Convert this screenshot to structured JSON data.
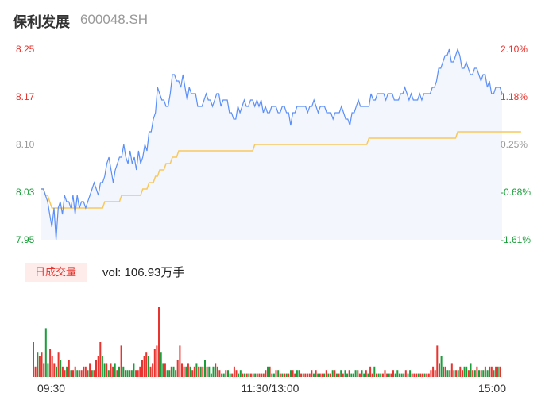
{
  "header": {
    "name": "保利发展",
    "code": "600048.SH"
  },
  "volume_panel": {
    "tag_label": "日成交量",
    "vol_prefix": "vol: ",
    "vol_value": "106.93",
    "vol_unit": "万手",
    "vol_text": "vol: 106.93万手"
  },
  "colors": {
    "price_line": "#5b8ff9",
    "avg_line": "#f7c95c",
    "up": "#e8332e",
    "down": "#1a9e3a",
    "neutral": "#999999",
    "area_fill": "#f3f6fd"
  },
  "chart_data": [
    {
      "type": "line",
      "title": "",
      "y_labels_left": [
        "8.25",
        "8.17",
        "8.10",
        "8.03",
        "7.95"
      ],
      "y_labels_right": [
        "2.10%",
        "1.18%",
        "0.25%",
        "-0.68%",
        "-1.61%"
      ],
      "y_label_colors": [
        "up",
        "up",
        "neutral",
        "down",
        "down"
      ],
      "ylim": [
        7.95,
        8.25
      ],
      "prev_close": 8.08,
      "x_labels": [
        "09:30",
        "11:30/13:00",
        "15:00"
      ],
      "series": [
        {
          "role": "price",
          "values": [
            8.03,
            8.03,
            8.02,
            8.01,
            7.99,
            7.97,
            8.0,
            7.95,
            8.0,
            8.01,
            7.99,
            8.02,
            8.01,
            8.01,
            8.0,
            8.02,
            7.99,
            8.02,
            8.0,
            8.01,
            8.01,
            8.0,
            8.01,
            8.02,
            8.03,
            8.04,
            8.03,
            8.02,
            8.04,
            8.04,
            8.05,
            8.07,
            8.08,
            8.06,
            8.04,
            8.06,
            8.07,
            8.08,
            8.08,
            8.1,
            8.08,
            8.07,
            8.09,
            8.07,
            8.08,
            8.06,
            8.09,
            8.07,
            8.08,
            8.1,
            8.09,
            8.12,
            8.12,
            8.14,
            8.15,
            8.19,
            8.18,
            8.17,
            8.17,
            8.16,
            8.16,
            8.18,
            8.21,
            8.21,
            8.2,
            8.2,
            8.19,
            8.21,
            8.19,
            8.17,
            8.19,
            8.18,
            8.18,
            8.18,
            8.16,
            8.16,
            8.16,
            8.17,
            8.18,
            8.17,
            8.17,
            8.16,
            8.17,
            8.18,
            8.18,
            8.16,
            8.17,
            8.17,
            8.17,
            8.15,
            8.15,
            8.14,
            8.14,
            8.16,
            8.15,
            8.16,
            8.17,
            8.16,
            8.16,
            8.17,
            8.17,
            8.16,
            8.17,
            8.16,
            8.17,
            8.15,
            8.16,
            8.15,
            8.15,
            8.16,
            8.16,
            8.16,
            8.15,
            8.15,
            8.16,
            8.16,
            8.15,
            8.15,
            8.13,
            8.15,
            8.15,
            8.16,
            8.16,
            8.16,
            8.16,
            8.16,
            8.15,
            8.16,
            8.16,
            8.17,
            8.16,
            8.15,
            8.16,
            8.16,
            8.16,
            8.15,
            8.15,
            8.15,
            8.14,
            8.15,
            8.15,
            8.15,
            8.16,
            8.15,
            8.14,
            8.14,
            8.13,
            8.15,
            8.15,
            8.16,
            8.17,
            8.16,
            8.16,
            8.16,
            8.16,
            8.16,
            8.18,
            8.17,
            8.17,
            8.18,
            8.18,
            8.18,
            8.18,
            8.17,
            8.18,
            8.18,
            8.18,
            8.17,
            8.17,
            8.17,
            8.18,
            8.18,
            8.19,
            8.18,
            8.17,
            8.18,
            8.17,
            8.17,
            8.17,
            8.18,
            8.17,
            8.18,
            8.18,
            8.18,
            8.18,
            8.19,
            8.19,
            8.2,
            8.22,
            8.22,
            8.23,
            8.24,
            8.24,
            8.25,
            8.23,
            8.23,
            8.24,
            8.25,
            8.24,
            8.22,
            8.22,
            8.23,
            8.22,
            8.21,
            8.21,
            8.22,
            8.22,
            8.21,
            8.2,
            8.21,
            8.21,
            8.19,
            8.2,
            8.18,
            8.18,
            8.19,
            8.19,
            8.19,
            8.18
          ]
        },
        {
          "role": "average",
          "values": [
            8.03,
            8.03,
            8.02,
            8.02,
            8.01,
            8.0,
            8.0,
            8.0,
            8.0,
            8.0,
            8.0,
            8.0,
            8.0,
            8.0,
            8.0,
            8.0,
            8.0,
            8.0,
            8.0,
            8.0,
            8.0,
            8.0,
            8.0,
            8.0,
            8.0,
            8.0,
            8.0,
            8.0,
            8.0,
            8.0,
            8.01,
            8.01,
            8.01,
            8.01,
            8.01,
            8.01,
            8.01,
            8.01,
            8.02,
            8.02,
            8.02,
            8.02,
            8.02,
            8.02,
            8.02,
            8.02,
            8.02,
            8.02,
            8.03,
            8.03,
            8.03,
            8.04,
            8.04,
            8.04,
            8.05,
            8.05,
            8.06,
            8.06,
            8.06,
            8.07,
            8.07,
            8.07,
            8.08,
            8.08,
            8.08,
            8.09,
            8.09,
            8.09,
            8.09,
            8.09,
            8.09,
            8.09,
            8.09,
            8.09,
            8.09,
            8.09,
            8.09,
            8.09,
            8.09,
            8.09,
            8.09,
            8.09,
            8.09,
            8.09,
            8.09,
            8.09,
            8.09,
            8.09,
            8.09,
            8.09,
            8.09,
            8.09,
            8.09,
            8.09,
            8.09,
            8.09,
            8.09,
            8.09,
            8.09,
            8.09,
            8.09,
            8.1,
            8.1,
            8.1,
            8.1,
            8.1,
            8.1,
            8.1,
            8.1,
            8.1,
            8.1,
            8.1,
            8.1,
            8.1,
            8.1,
            8.1,
            8.1,
            8.1,
            8.1,
            8.1,
            8.1,
            8.1,
            8.1,
            8.1,
            8.1,
            8.1,
            8.1,
            8.1,
            8.1,
            8.1,
            8.1,
            8.1,
            8.1,
            8.1,
            8.1,
            8.1,
            8.1,
            8.1,
            8.1,
            8.1,
            8.1,
            8.1,
            8.1,
            8.1,
            8.1,
            8.1,
            8.1,
            8.1,
            8.1,
            8.1,
            8.1,
            8.1,
            8.1,
            8.1,
            8.1,
            8.11,
            8.11,
            8.11,
            8.11,
            8.11,
            8.11,
            8.11,
            8.11,
            8.11,
            8.11,
            8.11,
            8.11,
            8.11,
            8.11,
            8.11,
            8.11,
            8.11,
            8.11,
            8.11,
            8.11,
            8.11,
            8.11,
            8.11,
            8.11,
            8.11,
            8.11,
            8.11,
            8.11,
            8.11,
            8.11,
            8.11,
            8.11,
            8.11,
            8.11,
            8.11,
            8.11,
            8.11,
            8.11,
            8.11,
            8.11,
            8.11,
            8.11,
            8.12,
            8.12,
            8.12,
            8.12,
            8.12,
            8.12,
            8.12,
            8.12,
            8.12,
            8.12,
            8.12,
            8.12,
            8.12,
            8.12,
            8.12,
            8.12,
            8.12,
            8.12,
            8.12,
            8.12,
            8.12,
            8.12,
            8.12,
            8.12,
            8.12,
            8.12,
            8.12,
            8.12,
            8.12,
            8.12,
            8.12
          ]
        }
      ]
    },
    {
      "type": "bar",
      "title": "",
      "values": [
        10,
        3,
        7,
        6,
        7,
        4,
        14,
        4,
        8,
        6,
        4,
        3,
        7,
        5,
        3,
        2,
        3,
        5,
        2,
        2,
        3,
        2,
        2,
        2,
        3,
        3,
        2,
        4,
        2,
        2,
        5,
        6,
        10,
        6,
        4,
        4,
        2,
        4,
        3,
        4,
        2,
        3,
        9,
        3,
        2,
        2,
        2,
        2,
        4,
        2,
        2,
        3,
        5,
        6,
        7,
        6,
        3,
        4,
        8,
        9,
        20,
        7,
        4,
        4,
        2,
        2,
        3,
        3,
        2,
        5,
        9,
        4,
        3,
        3,
        4,
        3,
        2,
        3,
        4,
        3,
        3,
        3,
        5,
        3,
        3,
        1,
        3,
        4,
        3,
        2,
        1,
        1,
        2,
        2,
        1,
        1,
        3,
        2,
        1,
        2,
        1,
        1,
        1,
        1,
        1,
        1,
        1,
        1,
        1,
        1,
        1,
        2,
        3,
        3,
        1,
        1,
        2,
        2,
        1,
        1,
        1,
        1,
        1,
        2,
        2,
        1,
        2,
        2,
        1,
        1,
        1,
        1,
        1,
        2,
        1,
        2,
        1,
        1,
        1,
        1,
        2,
        1,
        1,
        2,
        2,
        1,
        1,
        2,
        1,
        2,
        1,
        2,
        1,
        1,
        2,
        2,
        1,
        2,
        1,
        2,
        1,
        3,
        1,
        3,
        1,
        1,
        1,
        1,
        2,
        1,
        1,
        1,
        2,
        1,
        2,
        1,
        1,
        1,
        2,
        1,
        2,
        1,
        1,
        1,
        1,
        1,
        1,
        1,
        1,
        1,
        2,
        3,
        2,
        9,
        4,
        6,
        3,
        3,
        2,
        2,
        4,
        2,
        2,
        2,
        3,
        2,
        3,
        3,
        2,
        4,
        2,
        2,
        3,
        2,
        2,
        2,
        3,
        2,
        3,
        3,
        2,
        3,
        3,
        3
      ],
      "colors": [
        "up",
        "up",
        "down",
        "up",
        "up",
        "up",
        "down",
        "down",
        "up",
        "up",
        "up",
        "down",
        "up",
        "down",
        "up",
        "up",
        "down",
        "up",
        "down",
        "up",
        "up",
        "down",
        "up",
        "up",
        "up",
        "up",
        "down",
        "up",
        "down",
        "up",
        "up",
        "up",
        "up",
        "down",
        "down",
        "up",
        "down",
        "up",
        "up",
        "down",
        "up",
        "down",
        "up",
        "down",
        "up",
        "down",
        "up",
        "down",
        "down",
        "up",
        "up",
        "up",
        "up",
        "up",
        "up",
        "down",
        "up",
        "up",
        "up",
        "up",
        "up",
        "down",
        "down",
        "up",
        "down",
        "down",
        "up",
        "down",
        "down",
        "up",
        "up",
        "up",
        "up",
        "down",
        "up",
        "down",
        "up",
        "up",
        "down",
        "up",
        "down",
        "up",
        "down",
        "up",
        "down",
        "down",
        "down",
        "up",
        "down",
        "up",
        "down",
        "down",
        "up",
        "down",
        "down",
        "up",
        "up",
        "up",
        "down",
        "down",
        "up",
        "down",
        "up",
        "down",
        "up",
        "up",
        "down",
        "up",
        "up",
        "down",
        "up",
        "up",
        "down",
        "up",
        "down",
        "down",
        "up",
        "down",
        "up",
        "down",
        "up",
        "down",
        "up",
        "down",
        "up",
        "up",
        "down",
        "down",
        "up",
        "down",
        "up",
        "down",
        "up",
        "up",
        "down",
        "up",
        "down",
        "up",
        "up",
        "down",
        "up",
        "down",
        "up",
        "down",
        "up",
        "down",
        "up",
        "down",
        "up",
        "down",
        "down",
        "up",
        "down",
        "up",
        "down",
        "up",
        "up",
        "down",
        "down",
        "up",
        "down",
        "up",
        "up",
        "down",
        "up",
        "down",
        "down",
        "up",
        "up",
        "up",
        "down",
        "up",
        "up",
        "down",
        "down",
        "up",
        "down",
        "up",
        "up",
        "down",
        "down",
        "up",
        "up",
        "up",
        "down",
        "up",
        "up",
        "down",
        "up",
        "up",
        "up",
        "up",
        "up",
        "up",
        "up",
        "down",
        "up",
        "up",
        "down",
        "up",
        "up",
        "down",
        "up",
        "down",
        "up",
        "up",
        "down",
        "down",
        "up",
        "down",
        "up",
        "down",
        "up",
        "down",
        "up",
        "down",
        "up",
        "down",
        "up",
        "up",
        "down",
        "up",
        "down",
        "up",
        "down",
        "up",
        "down",
        "up",
        "down",
        "up"
      ]
    }
  ]
}
